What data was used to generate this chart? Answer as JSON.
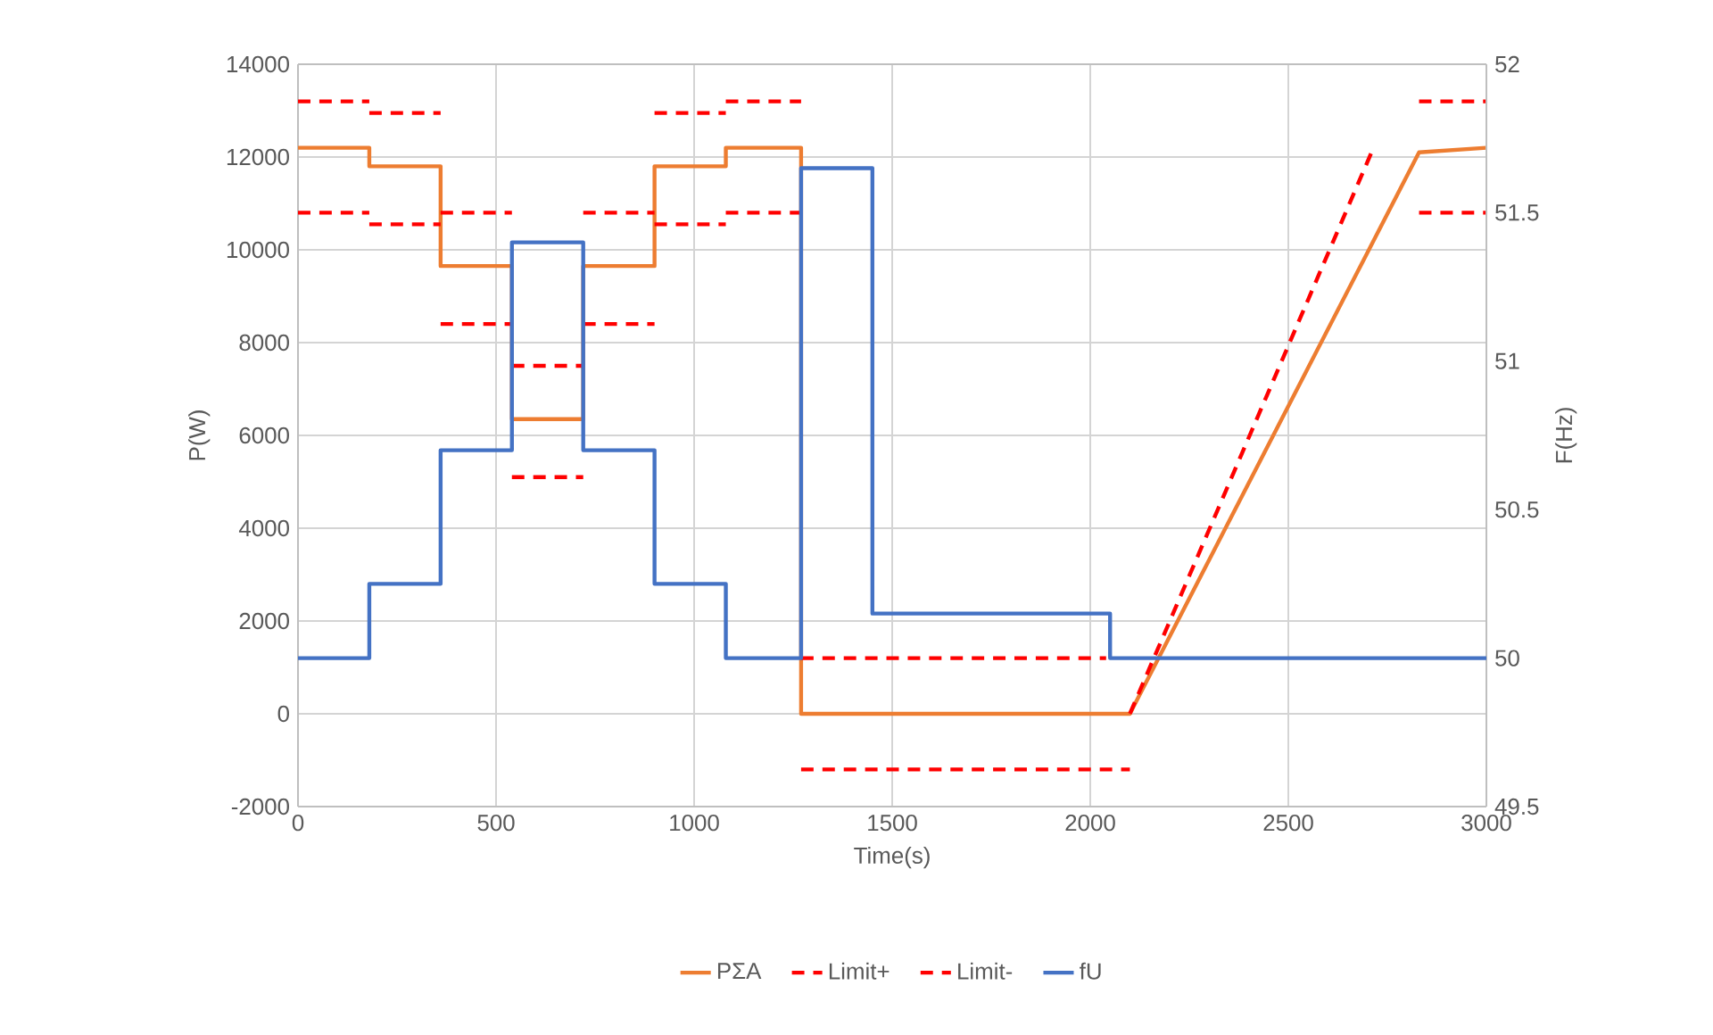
{
  "chart_data": {
    "type": "line",
    "xlabel": "Time(s)",
    "ylabel": "P(W)",
    "y2label": "F(Hz)",
    "xlim": [
      0,
      3000
    ],
    "xticks": [
      0,
      500,
      1000,
      1500,
      2000,
      2500,
      3000
    ],
    "ylim": [
      -2000,
      14000
    ],
    "yticks": [
      -2000,
      0,
      2000,
      4000,
      6000,
      8000,
      10000,
      12000,
      14000
    ],
    "y2lim": [
      49.5,
      52
    ],
    "y2ticks": [
      49.5,
      50,
      50.5,
      51,
      51.5,
      52
    ],
    "grid": true,
    "legend": "bottom",
    "marker": "none",
    "series": [
      {
        "name": "PΣA",
        "color": "#ed7d31",
        "line_style": "solid",
        "x": [
          0,
          180,
          180,
          360,
          360,
          540,
          540,
          720,
          720,
          900,
          900,
          1080,
          1080,
          1270,
          1270,
          2100,
          2830,
          3000
        ],
        "values": [
          12200,
          12200,
          11800,
          11800,
          9650,
          9650,
          6350,
          6350,
          9650,
          9650,
          11800,
          11800,
          12200,
          12200,
          0,
          0,
          12100,
          12200
        ]
      },
      {
        "name": "Limit+",
        "color": "#ff0000",
        "line_style": "dashed",
        "x": [
          0,
          180,
          null,
          180,
          360,
          null,
          360,
          540,
          null,
          540,
          720,
          null,
          720,
          900,
          null,
          900,
          1080,
          null,
          1080,
          1270,
          null,
          1270,
          2040,
          null,
          2100,
          2710,
          null,
          2830,
          3000
        ],
        "values": [
          13200,
          13200,
          null,
          12950,
          12950,
          null,
          10800,
          10800,
          null,
          7500,
          7500,
          null,
          10800,
          10800,
          null,
          12950,
          12950,
          null,
          13200,
          13200,
          null,
          1200,
          1200,
          null,
          0,
          12100,
          null,
          13200,
          13200
        ]
      },
      {
        "name": "Limit-",
        "color": "#ff0000",
        "line_style": "dashed",
        "x": [
          0,
          180,
          null,
          180,
          360,
          null,
          360,
          540,
          null,
          540,
          720,
          null,
          720,
          900,
          null,
          900,
          1080,
          null,
          1080,
          1270,
          null,
          1270,
          2100,
          null,
          2830,
          3000
        ],
        "values": [
          10800,
          10800,
          null,
          10550,
          10550,
          null,
          8400,
          8400,
          null,
          5100,
          5100,
          null,
          8400,
          8400,
          null,
          10550,
          10550,
          null,
          10800,
          10800,
          null,
          -1200,
          -1200,
          null,
          10800,
          10800
        ]
      },
      {
        "name": "fU",
        "color": "#4472c4",
        "line_style": "solid",
        "axis": "y2",
        "x": [
          0,
          180,
          180,
          360,
          360,
          540,
          540,
          720,
          720,
          900,
          900,
          1080,
          1080,
          1270,
          1270,
          1450,
          1450,
          2050,
          2050,
          3000
        ],
        "values": [
          50,
          50,
          50.25,
          50.25,
          50.7,
          50.7,
          51.4,
          51.4,
          50.7,
          50.7,
          50.25,
          50.25,
          50,
          50,
          51.65,
          51.65,
          50.15,
          50.15,
          50,
          50
        ]
      }
    ]
  }
}
